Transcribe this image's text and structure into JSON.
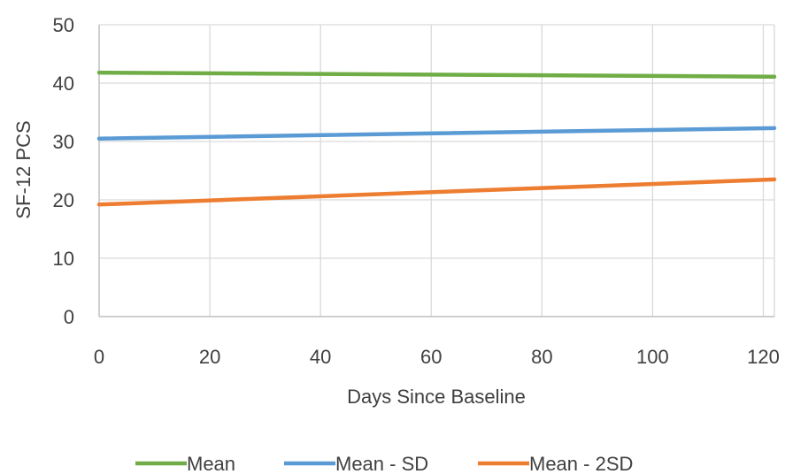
{
  "chart_data": {
    "type": "line",
    "title": "",
    "xlabel": "Days Since Baseline",
    "ylabel": "SF-12 PCS",
    "xlim": [
      0,
      122
    ],
    "ylim": [
      0,
      50
    ],
    "x_ticks": [
      0,
      20,
      40,
      60,
      80,
      100,
      120
    ],
    "y_ticks": [
      0,
      10,
      20,
      30,
      40,
      50
    ],
    "x_tick_labels": [
      "0",
      "20",
      "40",
      "60",
      "80",
      "100",
      "120"
    ],
    "y_tick_labels": [
      "0",
      "10",
      "20",
      "30",
      "40",
      "50"
    ],
    "grid": true,
    "legend_position": "bottom",
    "series": [
      {
        "name": "Mean",
        "color": "#70ad47",
        "x": [
          0,
          122
        ],
        "y": [
          41.8,
          41.1
        ]
      },
      {
        "name": "Mean - SD",
        "color": "#5b9bd5",
        "x": [
          0,
          122
        ],
        "y": [
          30.5,
          32.3
        ]
      },
      {
        "name": "Mean - 2SD",
        "color": "#ed7d31",
        "x": [
          0,
          122
        ],
        "y": [
          19.2,
          23.5
        ]
      }
    ]
  }
}
